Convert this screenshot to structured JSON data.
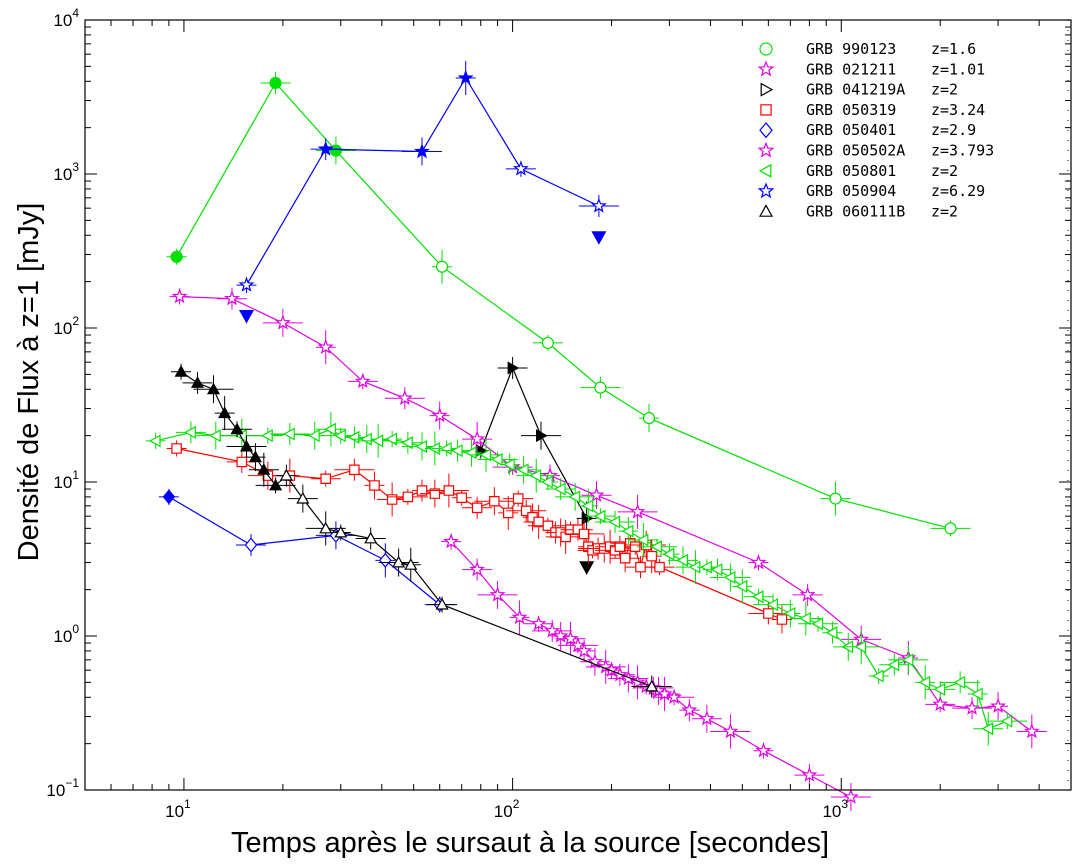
{
  "chart_data": {
    "type": "scatter",
    "xlabel": "Temps après le sursaut à la source [secondes]",
    "ylabel": "Densité de Flux à z=1 [mJy]",
    "xscale": "log",
    "yscale": "log",
    "xlim": [
      5,
      5000
    ],
    "ylim": [
      0.1,
      10000
    ],
    "x_ticks": [
      {
        "value": 10,
        "base": "10",
        "exp": "1"
      },
      {
        "value": 100,
        "base": "10",
        "exp": "2"
      },
      {
        "value": 1000,
        "base": "10",
        "exp": "3"
      }
    ],
    "y_ticks": [
      {
        "value": 0.1,
        "base": "10",
        "exp": "−1"
      },
      {
        "value": 1,
        "base": "10",
        "exp": "0"
      },
      {
        "value": 10,
        "base": "10",
        "exp": "1"
      },
      {
        "value": 100,
        "base": "10",
        "exp": "2"
      },
      {
        "value": 1000,
        "base": "10",
        "exp": "3"
      },
      {
        "value": 10000,
        "base": "10",
        "exp": "4"
      }
    ],
    "legend_position": "top-right",
    "series": [
      {
        "name": "GRB 990123",
        "z": "z=1.6",
        "color": "#00e000",
        "marker": "circle",
        "x": [
          9.5,
          19,
          29,
          61,
          128,
          185,
          260,
          960,
          2150
        ],
        "y": [
          290,
          3900,
          1420,
          250,
          80,
          41,
          26,
          7.8,
          5.0
        ],
        "filled": [
          true,
          true,
          true,
          false,
          false,
          false,
          false,
          false,
          false
        ]
      },
      {
        "name": "GRB 021211",
        "z": "z=1.01",
        "color": "#e000e0",
        "marker": "star",
        "x": [
          65,
          78,
          90,
          105,
          120,
          132,
          140,
          150,
          158,
          165,
          178,
          192,
          200,
          212,
          225,
          240,
          255,
          268,
          278,
          290,
          310,
          345,
          390,
          460,
          580,
          800,
          1070
        ],
        "y": [
          4.1,
          2.7,
          1.85,
          1.32,
          1.2,
          1.08,
          1.0,
          0.96,
          0.87,
          0.8,
          0.68,
          0.63,
          0.6,
          0.56,
          0.53,
          0.5,
          0.47,
          0.46,
          0.44,
          0.42,
          0.4,
          0.33,
          0.29,
          0.24,
          0.18,
          0.125,
          0.09
        ],
        "filled": false
      },
      {
        "name": "GRB 041219A",
        "z": "z=2",
        "color": "#000000",
        "marker": "triangle-right",
        "x": [
          80,
          100,
          122,
          168
        ],
        "y": [
          16,
          55,
          20,
          5.8
        ],
        "filled": true,
        "upper_limits": [
          {
            "x": 168,
            "y": 2.8
          }
        ]
      },
      {
        "name": "GRB 050319",
        "z": "z=3.24",
        "color": "#ff0000",
        "marker": "square",
        "x": [
          9.5,
          15,
          18,
          21,
          27,
          33,
          38,
          43,
          48,
          53,
          58,
          64,
          70,
          78,
          88,
          97,
          104,
          110,
          115,
          120,
          128,
          135,
          140,
          145,
          150,
          158,
          165,
          170,
          175,
          182,
          190,
          198,
          205,
          212,
          220,
          228,
          236,
          245,
          255,
          265,
          280,
          600,
          660
        ],
        "y": [
          16.5,
          13.5,
          11.0,
          11.0,
          10.5,
          12.0,
          9.5,
          7.7,
          8.0,
          8.8,
          8.4,
          8.8,
          7.9,
          6.8,
          7.5,
          6.3,
          7.8,
          6.5,
          5.9,
          5.5,
          5.2,
          4.7,
          4.7,
          4.4,
          4.9,
          4.9,
          4.6,
          3.8,
          3.6,
          3.7,
          3.7,
          3.8,
          3.6,
          3.8,
          3.2,
          4.0,
          3.8,
          2.8,
          3.9,
          3.3,
          2.8,
          1.4,
          1.28
        ],
        "filled": false
      },
      {
        "name": "GRB 050401",
        "z": "z=2.9",
        "color": "#0000ff",
        "marker": "diamond",
        "x": [
          9.0,
          16,
          29,
          41,
          60
        ],
        "y": [
          8.0,
          3.9,
          4.5,
          3.1,
          1.6
        ],
        "filled": [
          true,
          false,
          false,
          false,
          false
        ]
      },
      {
        "name": "GRB 050502A",
        "z": "z=3.793",
        "color": "#e000e0",
        "marker": "star",
        "x": [
          9.7,
          14,
          20,
          27,
          35,
          47,
          60,
          78,
          100,
          130,
          180,
          240,
          560,
          790,
          1150,
          1600,
          2000,
          2500,
          3000,
          3800
        ],
        "y": [
          160,
          155,
          108,
          75,
          45,
          35,
          27,
          19,
          12.5,
          11,
          8.2,
          6.4,
          3.0,
          1.85,
          0.95,
          0.72,
          0.36,
          0.34,
          0.35,
          0.24
        ],
        "filled": false
      },
      {
        "name": "GRB 050801",
        "z": "z=2",
        "color": "#00e000",
        "marker": "triangle-left",
        "x": [
          8.2,
          10.5,
          12.5,
          15,
          18,
          21,
          25,
          28,
          30,
          33,
          36,
          39,
          43,
          48,
          53,
          58,
          63,
          68,
          75,
          83,
          90,
          98,
          108,
          118,
          128,
          140,
          155,
          170,
          185,
          205,
          225,
          250,
          275,
          300,
          330,
          360,
          390,
          420,
          460,
          500,
          560,
          620,
          700,
          780,
          850,
          940,
          1050,
          1150,
          1300,
          1450,
          1600,
          1800,
          2000,
          2300,
          2600,
          2800,
          3200
        ],
        "y": [
          18.5,
          21,
          20,
          20,
          20,
          20.5,
          20,
          22,
          20,
          19.5,
          19,
          18.5,
          19,
          18,
          17,
          16.5,
          16.5,
          16,
          15.5,
          15,
          14,
          13,
          12,
          11,
          10,
          9,
          8,
          7,
          6,
          5.5,
          4.8,
          4.2,
          3.8,
          3.4,
          3.1,
          2.8,
          2.8,
          2.7,
          2.4,
          2.1,
          1.8,
          1.6,
          1.4,
          1.3,
          1.2,
          1.05,
          0.85,
          0.85,
          0.55,
          0.65,
          0.7,
          0.5,
          0.45,
          0.5,
          0.42,
          0.25,
          0.28
        ],
        "filled": false
      },
      {
        "name": "GRB 050904",
        "z": "z=6.29",
        "color": "#0000ff",
        "marker": "star",
        "x": [
          15.5,
          27,
          53,
          72,
          106,
          183
        ],
        "y": [
          190,
          1450,
          1400,
          4200,
          1080,
          620
        ],
        "filled": [
          false,
          true,
          true,
          true,
          false,
          false
        ],
        "upper_limits": [
          {
            "x": 15.5,
            "y": 120
          },
          {
            "x": 183,
            "y": 390
          }
        ]
      },
      {
        "name": "GRB 060111B",
        "z": "z=2",
        "color": "#000000",
        "marker": "triangle-up",
        "x": [
          9.8,
          11,
          12.3,
          13.3,
          14.5,
          15.5,
          16.5,
          17.5,
          19,
          20.5,
          23,
          27,
          30,
          37,
          45,
          49,
          61,
          265
        ],
        "y": [
          52,
          44,
          40,
          28,
          22,
          17,
          14.5,
          12,
          9.5,
          11,
          7.8,
          5.0,
          4.7,
          4.3,
          3.0,
          2.9,
          1.6,
          0.47
        ],
        "filled": [
          true,
          true,
          true,
          true,
          true,
          true,
          true,
          true,
          true,
          false,
          false,
          false,
          false,
          false,
          false,
          false,
          false,
          false
        ]
      }
    ]
  }
}
